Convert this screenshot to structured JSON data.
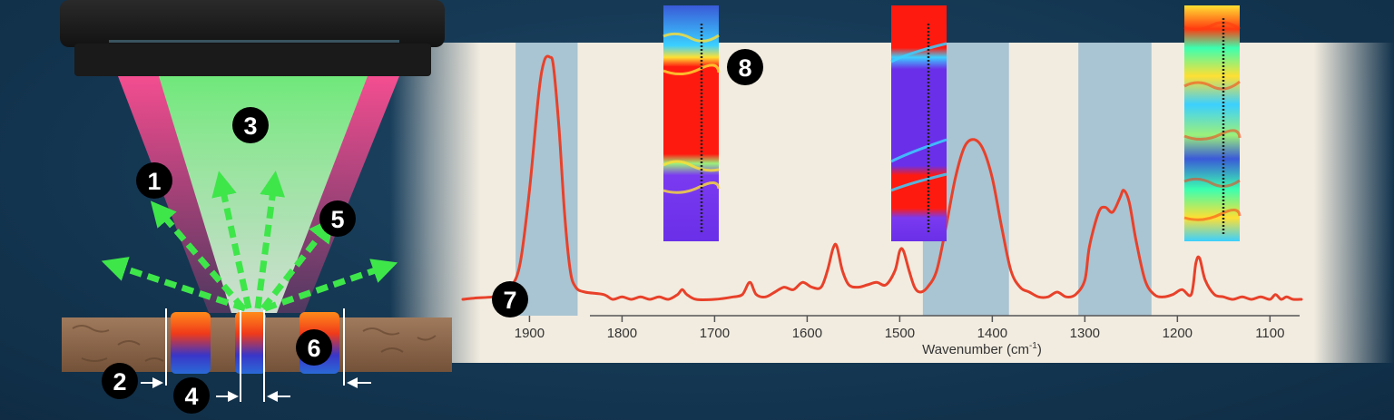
{
  "labels": {
    "l1": "1",
    "l2": "2",
    "l3": "3",
    "l4": "4",
    "l5": "5",
    "l6": "6",
    "l7": "7",
    "l8": "8"
  },
  "colors": {
    "background": "#163a56",
    "beam_green": "#5fe07a",
    "beam_pink": "#ff3f8a",
    "arrow_green": "#3ee64a",
    "panel": "#f2ece0",
    "band": "#a9c4d2",
    "spectrum": "#e8412a"
  },
  "chart_data": {
    "type": "line",
    "xlabel": "Wavenumber (cm",
    "xlabel_sup": "-1",
    "xlabel_suffix": ")",
    "xlim": [
      1972,
      1066
    ],
    "x_reversed": true,
    "ticks": [
      1900,
      1800,
      1700,
      1600,
      1500,
      1400,
      1300,
      1200,
      1100
    ],
    "tick_labels": [
      "1900",
      "1800",
      "1700",
      "1600",
      "1500",
      "1400",
      "1300",
      "1200",
      "1100"
    ],
    "highlight_bands": [
      [
        1915,
        1848
      ],
      [
        1475,
        1382
      ],
      [
        1307,
        1228
      ]
    ],
    "series": [
      {
        "x": [
          1972,
          1960,
          1940,
          1930,
          1920,
          1910,
          1900,
          1890,
          1884,
          1878,
          1874,
          1868,
          1862,
          1856,
          1850,
          1840,
          1820,
          1810,
          1800,
          1790,
          1780,
          1770,
          1760,
          1750,
          1740,
          1735,
          1730,
          1720,
          1700,
          1680,
          1670,
          1662,
          1655,
          1645,
          1635,
          1625,
          1615,
          1605,
          1595,
          1585,
          1578,
          1572,
          1568,
          1562,
          1555,
          1545,
          1535,
          1525,
          1515,
          1505,
          1500,
          1496,
          1490,
          1484,
          1478,
          1470,
          1460,
          1450,
          1440,
          1430,
          1420,
          1410,
          1400,
          1390,
          1380,
          1370,
          1360,
          1350,
          1340,
          1330,
          1320,
          1310,
          1300,
          1295,
          1285,
          1278,
          1270,
          1262,
          1258,
          1252,
          1245,
          1235,
          1225,
          1215,
          1205,
          1195,
          1185,
          1180,
          1176,
          1170,
          1160,
          1150,
          1140,
          1130,
          1120,
          1110,
          1100,
          1094,
          1088,
          1082,
          1075,
          1066
        ],
        "y": [
          0.0,
          0.005,
          0.01,
          0.02,
          0.05,
          0.15,
          0.45,
          0.85,
          0.985,
          1.0,
          0.96,
          0.7,
          0.35,
          0.12,
          0.05,
          0.03,
          0.02,
          0.0,
          0.01,
          0.0,
          0.01,
          0.0,
          0.01,
          0.0,
          0.02,
          0.04,
          0.02,
          0.0,
          0.0,
          0.01,
          0.02,
          0.07,
          0.02,
          0.01,
          0.03,
          0.05,
          0.04,
          0.07,
          0.05,
          0.05,
          0.12,
          0.21,
          0.22,
          0.12,
          0.06,
          0.05,
          0.06,
          0.07,
          0.06,
          0.12,
          0.2,
          0.2,
          0.12,
          0.05,
          0.03,
          0.05,
          0.12,
          0.3,
          0.5,
          0.63,
          0.66,
          0.62,
          0.5,
          0.3,
          0.12,
          0.05,
          0.03,
          0.01,
          0.01,
          0.03,
          0.01,
          0.02,
          0.08,
          0.22,
          0.36,
          0.38,
          0.36,
          0.42,
          0.45,
          0.4,
          0.25,
          0.08,
          0.02,
          0.01,
          0.02,
          0.04,
          0.02,
          0.15,
          0.17,
          0.08,
          0.02,
          0.01,
          0.0,
          0.01,
          0.0,
          0.01,
          0.0,
          0.02,
          0.0,
          0.01,
          0.0,
          0.0
        ]
      }
    ]
  }
}
